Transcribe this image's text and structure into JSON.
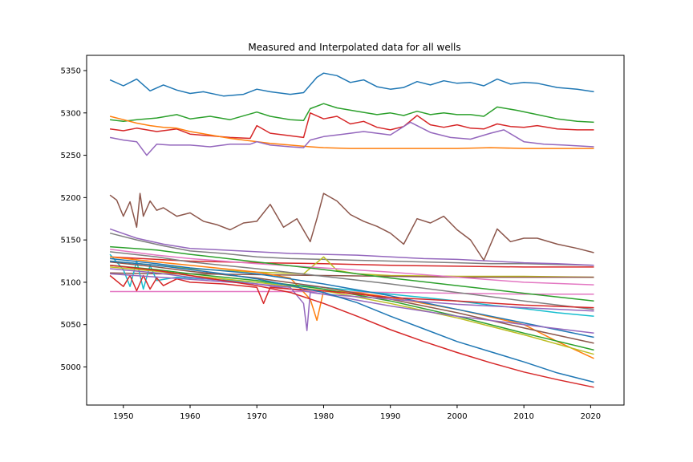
{
  "chart_data": {
    "type": "line",
    "title": "Measured and Interpolated data for all wells",
    "xlabel": "",
    "ylabel": "",
    "xlim": [
      1944.5,
      2025
    ],
    "ylim": [
      4955,
      5368
    ],
    "xticks": [
      1950,
      1960,
      1970,
      1980,
      1990,
      2000,
      2010,
      2020
    ],
    "yticks": [
      5000,
      5050,
      5100,
      5150,
      5200,
      5250,
      5300,
      5350
    ],
    "grid": false,
    "legend": "none",
    "series": [
      {
        "color": "#1f77b4",
        "x": [
          1948,
          1950,
          1952,
          1954,
          1956,
          1958,
          1960,
          1962,
          1965,
          1968,
          1970,
          1972,
          1975,
          1977,
          1979,
          1980,
          1982,
          1984,
          1986,
          1988,
          1990,
          1992,
          1994,
          1996,
          1998,
          2000,
          2002,
          2004,
          2006,
          2008,
          2010,
          2012,
          2015,
          2018,
          2020.5
        ],
        "y": [
          5339,
          5332,
          5340,
          5326,
          5333,
          5327,
          5323,
          5325,
          5320,
          5322,
          5328,
          5325,
          5322,
          5324,
          5342,
          5347,
          5344,
          5336,
          5339,
          5331,
          5328,
          5330,
          5337,
          5333,
          5338,
          5335,
          5336,
          5332,
          5340,
          5334,
          5336,
          5335,
          5330,
          5328,
          5325
        ]
      },
      {
        "color": "#2ca02c",
        "x": [
          1948,
          1950,
          1952,
          1955,
          1958,
          1960,
          1963,
          1966,
          1970,
          1972,
          1975,
          1977,
          1978,
          1980,
          1982,
          1985,
          1988,
          1990,
          1992,
          1994,
          1996,
          1998,
          2000,
          2002,
          2004,
          2006,
          2009,
          2012,
          2015,
          2018,
          2020.5
        ],
        "y": [
          5292,
          5290,
          5292,
          5294,
          5298,
          5293,
          5296,
          5292,
          5301,
          5296,
          5292,
          5291,
          5305,
          5311,
          5306,
          5302,
          5298,
          5300,
          5297,
          5302,
          5298,
          5300,
          5298,
          5298,
          5296,
          5307,
          5303,
          5298,
          5293,
          5290,
          5289
        ]
      },
      {
        "color": "#d62728",
        "x": [
          1948,
          1950,
          1952,
          1955,
          1958,
          1960,
          1963,
          1966,
          1969,
          1970,
          1972,
          1975,
          1977,
          1978,
          1980,
          1982,
          1984,
          1986,
          1988,
          1990,
          1992,
          1994,
          1996,
          1998,
          2000,
          2002,
          2004,
          2006,
          2008,
          2010,
          2012,
          2015,
          2018,
          2020.5
        ],
        "y": [
          5281,
          5279,
          5282,
          5278,
          5281,
          5275,
          5273,
          5271,
          5270,
          5285,
          5276,
          5273,
          5271,
          5300,
          5293,
          5296,
          5287,
          5290,
          5283,
          5280,
          5284,
          5297,
          5286,
          5283,
          5286,
          5282,
          5281,
          5287,
          5284,
          5283,
          5285,
          5281,
          5280,
          5280
        ]
      },
      {
        "color": "#ff7f0e",
        "x": [
          1948,
          1950,
          1952,
          1954,
          1956,
          1958,
          1960,
          1963,
          1966,
          1969,
          1972,
          1975,
          1978,
          1980,
          1984,
          1988,
          1992,
          1996,
          2000,
          2005,
          2010,
          2015,
          2020.5
        ],
        "y": [
          5296,
          5292,
          5288,
          5285,
          5283,
          5282,
          5278,
          5274,
          5270,
          5267,
          5264,
          5262,
          5260,
          5259,
          5258,
          5258,
          5258,
          5258,
          5258,
          5259,
          5258,
          5258,
          5258
        ]
      },
      {
        "color": "#9467bd",
        "x": [
          1948,
          1950,
          1952,
          1953.5,
          1955,
          1957,
          1960,
          1963,
          1966,
          1969,
          1970,
          1972,
          1975,
          1977,
          1978,
          1980,
          1983,
          1986,
          1990,
          1993,
          1996,
          1999,
          2002,
          2005,
          2007,
          2010,
          2013,
          2016,
          2020.5
        ],
        "y": [
          5271,
          5268,
          5266,
          5250,
          5263,
          5262,
          5262,
          5260,
          5263,
          5263,
          5266,
          5262,
          5260,
          5259,
          5268,
          5272,
          5275,
          5278,
          5274,
          5289,
          5277,
          5271,
          5269,
          5276,
          5280,
          5266,
          5263,
          5262,
          5260
        ]
      },
      {
        "color": "#8c564b",
        "x": [
          1948,
          1949,
          1950,
          1951,
          1952,
          1952.5,
          1953,
          1954,
          1955,
          1956,
          1958,
          1960,
          1962,
          1964,
          1966,
          1968,
          1970,
          1972,
          1974,
          1976,
          1978,
          1979,
          1980,
          1982,
          1984,
          1986,
          1988,
          1990,
          1992,
          1994,
          1996,
          1998,
          2000,
          2002,
          2004,
          2006,
          2008,
          2010,
          2012,
          2015,
          2018,
          2020.5
        ],
        "y": [
          5203,
          5197,
          5178,
          5195,
          5165,
          5205,
          5178,
          5196,
          5185,
          5188,
          5178,
          5182,
          5172,
          5168,
          5162,
          5170,
          5172,
          5192,
          5165,
          5175,
          5148,
          5175,
          5205,
          5196,
          5180,
          5172,
          5166,
          5158,
          5145,
          5175,
          5170,
          5178,
          5162,
          5150,
          5126,
          5163,
          5148,
          5152,
          5152,
          5145,
          5140,
          5135
        ]
      },
      {
        "color": "#7f7f7f",
        "x": [
          1948,
          1952,
          1956,
          1960,
          1965,
          1970,
          1975,
          1980,
          1985,
          1990,
          1995,
          2000,
          2005,
          2010,
          2015,
          2020.5
        ],
        "y": [
          5158,
          5150,
          5143,
          5137,
          5134,
          5130,
          5128,
          5127,
          5126,
          5125,
          5124,
          5123,
          5122,
          5122,
          5121,
          5120
        ]
      },
      {
        "color": "#9467bd",
        "x": [
          1948,
          1952,
          1956,
          1960,
          1965,
          1970,
          1975,
          1980,
          1985,
          1990,
          1995,
          2000,
          2005,
          2010,
          2015,
          2020.5
        ],
        "y": [
          5163,
          5152,
          5145,
          5140,
          5138,
          5136,
          5134,
          5133,
          5132,
          5130,
          5128,
          5127,
          5125,
          5123,
          5122,
          5120
        ]
      },
      {
        "color": "#d62728",
        "x": [
          1948,
          1955,
          1960,
          1970,
          1980,
          1990,
          2000,
          2010,
          2020.5
        ],
        "y": [
          5130,
          5127,
          5125,
          5123,
          5122,
          5120,
          5119,
          5118,
          5118
        ]
      },
      {
        "color": "#bcbd22",
        "x": [
          1948,
          1955,
          1960,
          1970,
          1977,
          1980,
          1982,
          1985,
          1990,
          2000,
          2010,
          2020.5
        ],
        "y": [
          5125,
          5120,
          5116,
          5112,
          5110,
          5130,
          5114,
          5110,
          5108,
          5107,
          5107,
          5106
        ]
      },
      {
        "color": "#8c564b",
        "x": [
          1948,
          1955,
          1960,
          1970,
          1980,
          1990,
          2000,
          2010,
          2020.5
        ],
        "y": [
          5111,
          5110,
          5110,
          5109,
          5108,
          5107,
          5106,
          5106,
          5106
        ]
      },
      {
        "color": "#e377c2",
        "x": [
          1948,
          1955,
          1960,
          1970,
          1980,
          1990,
          2000,
          2010,
          2020.5
        ],
        "y": [
          5139,
          5132,
          5128,
          5122,
          5117,
          5112,
          5106,
          5100,
          5097
        ]
      },
      {
        "color": "#e377c2",
        "x": [
          1948,
          1955,
          1960,
          1970,
          1980,
          1990,
          2000,
          2010,
          2020.5
        ],
        "y": [
          5089,
          5089,
          5089,
          5089,
          5089,
          5088,
          5087,
          5086,
          5086
        ]
      },
      {
        "color": "#17becf",
        "x": [
          1948,
          1950,
          1951,
          1952,
          1953,
          1954,
          1955,
          1958,
          1962,
          1966,
          1970,
          1975,
          1980,
          1985,
          1990,
          1995,
          2000,
          2005,
          2010,
          2015,
          2020.5
        ],
        "y": [
          5133,
          5115,
          5095,
          5125,
          5092,
          5120,
          5102,
          5106,
          5104,
          5102,
          5100,
          5097,
          5094,
          5090,
          5086,
          5082,
          5078,
          5073,
          5069,
          5064,
          5060
        ]
      },
      {
        "color": "#2ca02c",
        "x": [
          1948,
          1955,
          1960,
          1970,
          1980,
          1990,
          2000,
          2010,
          2020.5
        ],
        "y": [
          5142,
          5138,
          5133,
          5124,
          5115,
          5105,
          5096,
          5087,
          5078
        ]
      },
      {
        "color": "#7f7f7f",
        "x": [
          1948,
          1955,
          1960,
          1970,
          1980,
          1990,
          2000,
          2010,
          2020.5
        ],
        "y": [
          5136,
          5130,
          5124,
          5116,
          5107,
          5098,
          5088,
          5078,
          5068
        ]
      },
      {
        "color": "#ff7f0e",
        "x": [
          1948,
          1955,
          1960,
          1970,
          1975,
          1978,
          1979,
          1980,
          1985,
          1990,
          2000,
          2010,
          2015,
          2020.5
        ],
        "y": [
          5130,
          5124,
          5120,
          5112,
          5105,
          5080,
          5055,
          5090,
          5088,
          5082,
          5068,
          5050,
          5030,
          5010
        ]
      },
      {
        "color": "#1f77b4",
        "x": [
          1948,
          1955,
          1960,
          1970,
          1980,
          1990,
          2000,
          2010,
          2020.5
        ],
        "y": [
          5128,
          5122,
          5117,
          5110,
          5098,
          5084,
          5068,
          5052,
          5035
        ]
      },
      {
        "color": "#8c564b",
        "x": [
          1948,
          1955,
          1960,
          1970,
          1980,
          1990,
          2000,
          2010,
          2020.5
        ],
        "y": [
          5124,
          5118,
          5113,
          5105,
          5094,
          5080,
          5064,
          5046,
          5028
        ]
      },
      {
        "color": "#2ca02c",
        "x": [
          1948,
          1955,
          1960,
          1970,
          1980,
          1990,
          2000,
          2010,
          2020.5
        ],
        "y": [
          5120,
          5115,
          5110,
          5102,
          5092,
          5078,
          5060,
          5040,
          5020
        ]
      },
      {
        "color": "#bcbd22",
        "x": [
          1948,
          1955,
          1960,
          1970,
          1980,
          1990,
          2000,
          2010,
          2020.5
        ],
        "y": [
          5118,
          5113,
          5108,
          5100,
          5090,
          5075,
          5058,
          5038,
          5015
        ]
      },
      {
        "color": "#9467bd",
        "x": [
          1948,
          1955,
          1960,
          1970,
          1980,
          1990,
          2000,
          2010,
          2020.5
        ],
        "y": [
          5116,
          5111,
          5106,
          5098,
          5086,
          5072,
          5060,
          5050,
          5040
        ]
      },
      {
        "color": "#d62728",
        "x": [
          1948,
          1950,
          1951,
          1952,
          1953,
          1954,
          1955,
          1956,
          1958,
          1960,
          1965,
          1970,
          1971,
          1972,
          1975,
          1980,
          1985,
          1990,
          2000,
          2010,
          2020.5
        ],
        "y": [
          5108,
          5095,
          5108,
          5090,
          5108,
          5092,
          5105,
          5096,
          5104,
          5100,
          5098,
          5094,
          5075,
          5094,
          5092,
          5090,
          5086,
          5082,
          5078,
          5073,
          5070
        ]
      },
      {
        "color": "#9467bd",
        "x": [
          1948,
          1970,
          1975,
          1977,
          1977.5,
          1978,
          1980,
          1990,
          2000,
          2010,
          2020.5
        ],
        "y": [
          5110,
          5098,
          5094,
          5075,
          5043,
          5088,
          5086,
          5080,
          5074,
          5070,
          5066
        ]
      },
      {
        "color": "#1f77b4",
        "x": [
          1948,
          1955,
          1960,
          1965,
          1970,
          1975,
          1980,
          1985,
          1990,
          1995,
          2000,
          2005,
          2010,
          2015,
          2020.5
        ],
        "y": [
          5125,
          5120,
          5115,
          5110,
          5104,
          5096,
          5088,
          5076,
          5060,
          5045,
          5030,
          5018,
          5006,
          4993,
          4982
        ]
      },
      {
        "color": "#d62728",
        "x": [
          1948,
          1955,
          1960,
          1965,
          1970,
          1975,
          1980,
          1985,
          1990,
          1995,
          2000,
          2005,
          2010,
          2015,
          2020.5
        ],
        "y": [
          5120,
          5114,
          5108,
          5102,
          5096,
          5088,
          5075,
          5060,
          5044,
          5030,
          5017,
          5005,
          4994,
          4985,
          4976
        ]
      }
    ]
  }
}
